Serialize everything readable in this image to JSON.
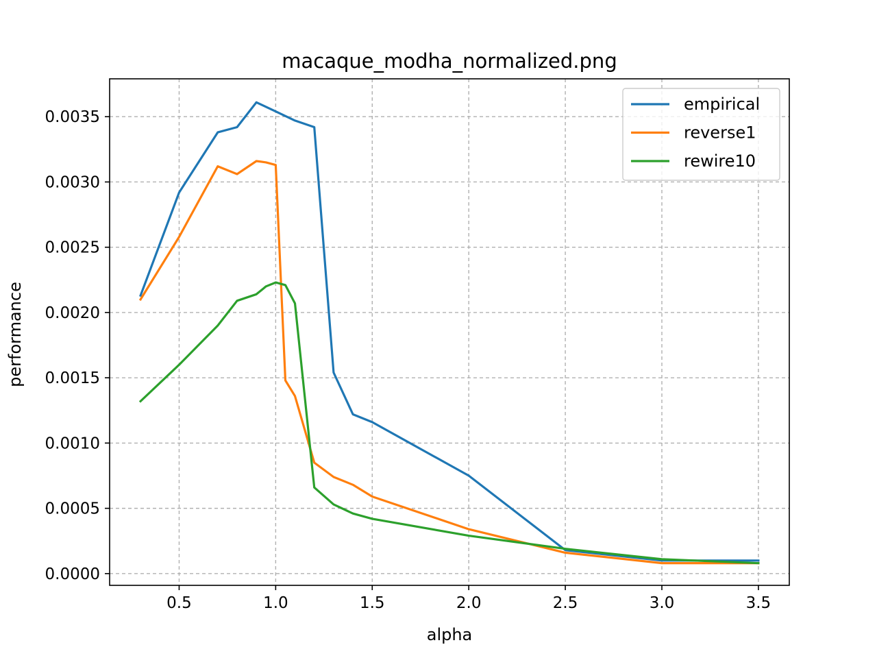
{
  "chart_data": {
    "type": "line",
    "title": "macaque_modha_normalized.png",
    "xlabel": "alpha",
    "ylabel": "performance",
    "xlim": [
      0.14,
      3.66
    ],
    "ylim": [
      -9e-05,
      0.00379
    ],
    "xticks": [
      0.5,
      1.0,
      1.5,
      2.0,
      2.5,
      3.0,
      3.5
    ],
    "xtick_labels": [
      "0.5",
      "1.0",
      "1.5",
      "2.0",
      "2.5",
      "3.0",
      "3.5"
    ],
    "yticks": [
      0.0,
      0.0005,
      0.001,
      0.0015,
      0.002,
      0.0025,
      0.003,
      0.0035
    ],
    "ytick_labels": [
      "0.0000",
      "0.0005",
      "0.0010",
      "0.0015",
      "0.0020",
      "0.0025",
      "0.0030",
      "0.0035"
    ],
    "grid": true,
    "legend_position": "top-right",
    "series": [
      {
        "name": "empirical",
        "color": "#1f77b4",
        "x": [
          0.3,
          0.5,
          0.7,
          0.8,
          0.9,
          1.0,
          1.1,
          1.2,
          1.3,
          1.4,
          1.5,
          2.0,
          2.5,
          3.0,
          3.5
        ],
        "y": [
          0.00213,
          0.00292,
          0.00338,
          0.00342,
          0.00361,
          0.00354,
          0.00347,
          0.00342,
          0.00154,
          0.00122,
          0.00116,
          0.00075,
          0.00018,
          0.0001,
          0.0001
        ]
      },
      {
        "name": "reverse1",
        "color": "#ff7f0e",
        "x": [
          0.3,
          0.5,
          0.7,
          0.8,
          0.9,
          0.95,
          1.0,
          1.05,
          1.1,
          1.2,
          1.3,
          1.4,
          1.5,
          2.0,
          2.5,
          3.0,
          3.5
        ],
        "y": [
          0.0021,
          0.00258,
          0.00312,
          0.00306,
          0.00316,
          0.00315,
          0.00313,
          0.00148,
          0.00136,
          0.00085,
          0.00074,
          0.00068,
          0.00059,
          0.00034,
          0.00016,
          8e-05,
          8e-05
        ]
      },
      {
        "name": "rewire10",
        "color": "#2ca02c",
        "x": [
          0.3,
          0.5,
          0.7,
          0.8,
          0.9,
          0.95,
          1.0,
          1.05,
          1.1,
          1.2,
          1.3,
          1.4,
          1.5,
          2.0,
          2.5,
          3.0,
          3.5
        ],
        "y": [
          0.00132,
          0.0016,
          0.0019,
          0.00209,
          0.00214,
          0.0022,
          0.00223,
          0.00221,
          0.00207,
          0.00066,
          0.00053,
          0.00046,
          0.00042,
          0.00029,
          0.00019,
          0.00011,
          8e-05
        ]
      }
    ]
  }
}
